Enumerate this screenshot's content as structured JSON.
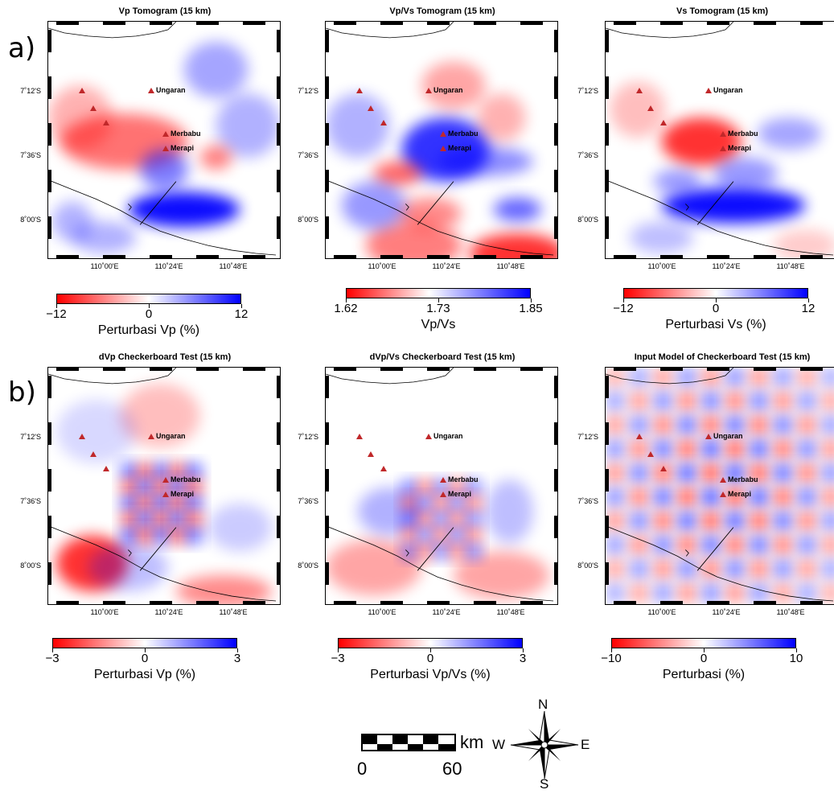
{
  "rows": [
    "a)",
    "b)"
  ],
  "panels": [
    {
      "title": "Vp Tomogram (15 km)",
      "colorbar": {
        "ticks": [
          "−12",
          "0",
          "12"
        ],
        "label": "Perturbasi Vp (%)"
      },
      "pattern": "vp"
    },
    {
      "title": "Vp/Vs Tomogram (15 km)",
      "colorbar": {
        "ticks": [
          "1.62",
          "1.73",
          "1.85"
        ],
        "label": "Vp/Vs"
      },
      "pattern": "vpvs"
    },
    {
      "title": "Vs Tomogram (15 km)",
      "colorbar": {
        "ticks": [
          "−12",
          "0",
          "12"
        ],
        "label": "Perturbasi Vs (%)"
      },
      "pattern": "vs"
    },
    {
      "title": "dVp Checkerboard Test (15 km)",
      "colorbar": {
        "ticks": [
          "−3",
          "0",
          "3"
        ],
        "label": "Perturbasi Vp (%)"
      },
      "pattern": "cb1"
    },
    {
      "title": "dVp/Vs Checkerboard Test (15 km)",
      "colorbar": {
        "ticks": [
          "−3",
          "0",
          "3"
        ],
        "label": "Perturbasi Vp/Vs (%)"
      },
      "pattern": "cb2"
    },
    {
      "title": "Input Model of Checkerboard Test (15 km)",
      "colorbar": {
        "ticks": [
          "−10",
          "0",
          "10"
        ],
        "label": "Perturbasi  (%)"
      },
      "pattern": "input"
    }
  ],
  "map_axes": {
    "y_ticks": [
      "7˚12'S",
      "7˚36'S",
      "8˚00'S"
    ],
    "x_ticks": [
      "110˚00'E",
      "110˚24'E",
      "110˚48'E"
    ]
  },
  "volcanoes": [
    "Ungaran",
    "Merbabu",
    "Merapi"
  ],
  "scalebar": {
    "unit": "km",
    "min": "0",
    "max": "60"
  },
  "compass": {
    "n": "N",
    "s": "S",
    "e": "E",
    "w": "W"
  },
  "colors": {
    "negative": "#ff0000",
    "neutral": "#ffffff",
    "positive": "#0000ff",
    "volcano": "#c0282a"
  }
}
